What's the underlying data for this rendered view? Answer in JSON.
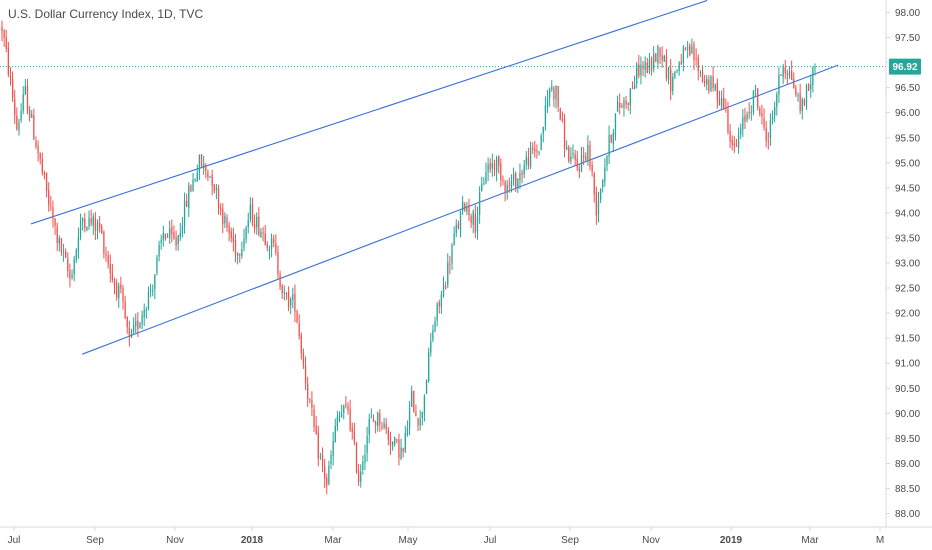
{
  "title": "U.S. Dollar Currency Index, 1D, TVC",
  "colors": {
    "up": "#26a69a",
    "down": "#ef5350",
    "trendline": "#3a6fd8",
    "last_price_line": "#26a69a",
    "axis": "#d9d9d9",
    "text": "#4a4a4a"
  },
  "last_price_label": "96.92",
  "chart_data": {
    "type": "candlestick",
    "title": "U.S. Dollar Currency Index, 1D, TVC",
    "xlabel": "",
    "ylabel": "",
    "ylim": [
      87.8,
      98.3
    ],
    "y_ticks": [
      "98.00",
      "97.50",
      "97.00",
      "96.50",
      "96.00",
      "95.50",
      "95.00",
      "94.50",
      "94.00",
      "93.50",
      "93.00",
      "92.50",
      "92.00",
      "91.50",
      "91.00",
      "90.50",
      "90.00",
      "89.50",
      "89.00",
      "88.50",
      "88.00"
    ],
    "x_ticks": [
      {
        "label": "Jul",
        "bold": false
      },
      {
        "label": "Sep",
        "bold": false
      },
      {
        "label": "Nov",
        "bold": false
      },
      {
        "label": "2018",
        "bold": true
      },
      {
        "label": "Mar",
        "bold": false
      },
      {
        "label": "May",
        "bold": false
      },
      {
        "label": "Jul",
        "bold": false
      },
      {
        "label": "Sep",
        "bold": false
      },
      {
        "label": "Nov",
        "bold": false
      },
      {
        "label": "2019",
        "bold": true
      },
      {
        "label": "Mar",
        "bold": false
      },
      {
        "label": "M",
        "bold": false
      }
    ],
    "last_price": 96.92,
    "path_keypoints": [
      [
        0,
        97.7
      ],
      [
        4,
        96.6
      ],
      [
        7,
        95.7
      ],
      [
        11,
        96.4
      ],
      [
        14,
        95.8
      ],
      [
        22,
        94.2
      ],
      [
        26,
        93.5
      ],
      [
        32,
        92.7
      ],
      [
        38,
        93.9
      ],
      [
        46,
        93.7
      ],
      [
        52,
        92.7
      ],
      [
        56,
        92.3
      ],
      [
        60,
        91.4
      ],
      [
        65,
        91.9
      ],
      [
        71,
        92.6
      ],
      [
        76,
        93.6
      ],
      [
        82,
        93.4
      ],
      [
        88,
        94.4
      ],
      [
        93,
        95.0
      ],
      [
        99,
        94.7
      ],
      [
        105,
        93.8
      ],
      [
        111,
        93.2
      ],
      [
        117,
        94.0
      ],
      [
        123,
        93.6
      ],
      [
        128,
        93.3
      ],
      [
        133,
        92.3
      ],
      [
        138,
        92.2
      ],
      [
        143,
        90.7
      ],
      [
        148,
        89.4
      ],
      [
        153,
        88.6
      ],
      [
        158,
        89.9
      ],
      [
        163,
        90.1
      ],
      [
        168,
        88.7
      ],
      [
        173,
        89.8
      ],
      [
        178,
        89.9
      ],
      [
        184,
        89.4
      ],
      [
        189,
        89.2
      ],
      [
        193,
        90.3
      ],
      [
        197,
        89.8
      ],
      [
        203,
        91.7
      ],
      [
        208,
        92.5
      ],
      [
        213,
        93.5
      ],
      [
        218,
        94.2
      ],
      [
        223,
        93.8
      ],
      [
        228,
        94.9
      ],
      [
        233,
        95.0
      ],
      [
        238,
        94.5
      ],
      [
        243,
        94.7
      ],
      [
        248,
        95.1
      ],
      [
        253,
        95.3
      ],
      [
        258,
        96.5
      ],
      [
        261,
        96.4
      ],
      [
        266,
        95.2
      ],
      [
        271,
        94.9
      ],
      [
        276,
        95.3
      ],
      [
        280,
        94.1
      ],
      [
        285,
        95.2
      ],
      [
        290,
        96.1
      ],
      [
        295,
        96.3
      ],
      [
        300,
        96.9
      ],
      [
        305,
        96.9
      ],
      [
        310,
        97.3
      ],
      [
        315,
        96.6
      ],
      [
        320,
        97.1
      ],
      [
        325,
        97.2
      ],
      [
        330,
        96.7
      ],
      [
        335,
        96.5
      ],
      [
        340,
        96.2
      ],
      [
        345,
        95.2
      ],
      [
        350,
        95.9
      ],
      [
        355,
        96.4
      ],
      [
        358,
        95.8
      ],
      [
        361,
        95.5
      ],
      [
        364,
        96.2
      ],
      [
        368,
        97.0
      ],
      [
        372,
        96.7
      ],
      [
        376,
        96.1
      ],
      [
        380,
        96.5
      ],
      [
        383,
        96.92
      ]
    ],
    "trendlines": [
      {
        "name": "upper",
        "x1": 0.035,
        "y1": 93.78,
        "x2": 0.8,
        "y2": 98.24
      },
      {
        "name": "lower",
        "x1": 0.093,
        "y1": 91.18,
        "x2": 0.948,
        "y2": 96.95
      }
    ]
  }
}
